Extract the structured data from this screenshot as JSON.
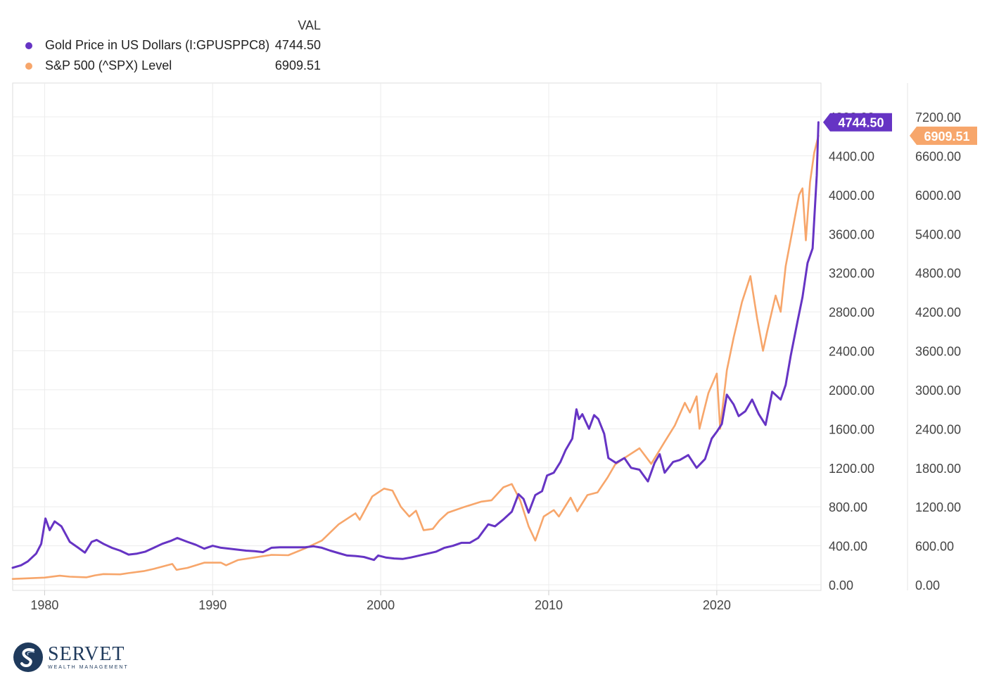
{
  "legend": {
    "header": "VAL",
    "items": [
      {
        "name": "Gold Price in US Dollars (I:GPUSPPC8)",
        "value": "4744.50",
        "color": "#6634c4"
      },
      {
        "name": "S&P 500 (^SPX) Level",
        "value": "6909.51",
        "color": "#f7a66b"
      }
    ]
  },
  "logo": {
    "name": "SERVET",
    "subtitle": "WEALTH MANAGEMENT",
    "color": "#1f3a5c"
  },
  "chart_data": {
    "type": "line",
    "x_ticks": [
      "1980",
      "1990",
      "2000",
      "2010",
      "2020"
    ],
    "x_range": [
      1978.1,
      2026.2
    ],
    "y_left": {
      "range": [
        0,
        4800
      ],
      "ticks": [
        "0.00",
        "400.00",
        "800.00",
        "1200.00",
        "1600.00",
        "2000.00",
        "2400.00",
        "2800.00",
        "3200.00",
        "3600.00",
        "4000.00",
        "4400.00",
        "4800.00"
      ]
    },
    "y_right": {
      "range": [
        0,
        7200
      ],
      "ticks": [
        "0.00",
        "600.00",
        "1200.00",
        "1800.00",
        "2400.00",
        "3000.00",
        "3600.00",
        "4200.00",
        "4800.00",
        "5400.00",
        "6000.00",
        "6600.00",
        "7200.00"
      ]
    },
    "grid": true,
    "series": [
      {
        "name": "Gold Price in US Dollars (I:GPUSPPC8)",
        "axis": "left",
        "color": "#6634c4",
        "last_label": "4744.50",
        "points": [
          [
            1978.1,
            175
          ],
          [
            1978.6,
            200
          ],
          [
            1979.0,
            240
          ],
          [
            1979.5,
            320
          ],
          [
            1979.8,
            420
          ],
          [
            1980.05,
            680
          ],
          [
            1980.3,
            560
          ],
          [
            1980.6,
            650
          ],
          [
            1981.0,
            600
          ],
          [
            1981.5,
            440
          ],
          [
            1982.0,
            380
          ],
          [
            1982.4,
            330
          ],
          [
            1982.8,
            440
          ],
          [
            1983.1,
            460
          ],
          [
            1983.5,
            420
          ],
          [
            1984.0,
            380
          ],
          [
            1984.5,
            350
          ],
          [
            1985.0,
            310
          ],
          [
            1985.5,
            320
          ],
          [
            1986.0,
            340
          ],
          [
            1986.5,
            380
          ],
          [
            1987.0,
            420
          ],
          [
            1987.5,
            450
          ],
          [
            1987.9,
            480
          ],
          [
            1988.5,
            440
          ],
          [
            1989.0,
            410
          ],
          [
            1989.5,
            370
          ],
          [
            1990.0,
            400
          ],
          [
            1990.5,
            380
          ],
          [
            1991.0,
            370
          ],
          [
            1991.5,
            360
          ],
          [
            1992.0,
            350
          ],
          [
            1992.5,
            345
          ],
          [
            1993.0,
            335
          ],
          [
            1993.5,
            380
          ],
          [
            1994.0,
            385
          ],
          [
            1994.5,
            385
          ],
          [
            1995.0,
            385
          ],
          [
            1995.5,
            385
          ],
          [
            1996.0,
            395
          ],
          [
            1996.5,
            380
          ],
          [
            1997.0,
            350
          ],
          [
            1997.5,
            325
          ],
          [
            1998.0,
            300
          ],
          [
            1998.5,
            295
          ],
          [
            1999.0,
            285
          ],
          [
            1999.6,
            255
          ],
          [
            1999.85,
            300
          ],
          [
            2000.3,
            280
          ],
          [
            2000.8,
            270
          ],
          [
            2001.3,
            265
          ],
          [
            2001.8,
            280
          ],
          [
            2002.3,
            300
          ],
          [
            2002.8,
            320
          ],
          [
            2003.3,
            340
          ],
          [
            2003.8,
            380
          ],
          [
            2004.3,
            400
          ],
          [
            2004.8,
            430
          ],
          [
            2005.3,
            430
          ],
          [
            2005.8,
            480
          ],
          [
            2006.4,
            620
          ],
          [
            2006.8,
            600
          ],
          [
            2007.3,
            670
          ],
          [
            2007.8,
            750
          ],
          [
            2008.2,
            930
          ],
          [
            2008.5,
            880
          ],
          [
            2008.8,
            740
          ],
          [
            2009.2,
            920
          ],
          [
            2009.6,
            960
          ],
          [
            2009.9,
            1120
          ],
          [
            2010.3,
            1150
          ],
          [
            2010.7,
            1260
          ],
          [
            2011.0,
            1380
          ],
          [
            2011.4,
            1500
          ],
          [
            2011.65,
            1800
          ],
          [
            2011.8,
            1700
          ],
          [
            2012.0,
            1750
          ],
          [
            2012.4,
            1600
          ],
          [
            2012.7,
            1740
          ],
          [
            2012.95,
            1700
          ],
          [
            2013.3,
            1550
          ],
          [
            2013.55,
            1300
          ],
          [
            2014.0,
            1250
          ],
          [
            2014.5,
            1300
          ],
          [
            2014.9,
            1200
          ],
          [
            2015.4,
            1180
          ],
          [
            2015.9,
            1060
          ],
          [
            2016.3,
            1250
          ],
          [
            2016.6,
            1340
          ],
          [
            2016.9,
            1150
          ],
          [
            2017.4,
            1260
          ],
          [
            2017.8,
            1280
          ],
          [
            2018.3,
            1330
          ],
          [
            2018.8,
            1200
          ],
          [
            2019.3,
            1290
          ],
          [
            2019.7,
            1500
          ],
          [
            2020.0,
            1570
          ],
          [
            2020.3,
            1650
          ],
          [
            2020.6,
            1950
          ],
          [
            2021.0,
            1850
          ],
          [
            2021.3,
            1730
          ],
          [
            2021.7,
            1780
          ],
          [
            2022.1,
            1900
          ],
          [
            2022.5,
            1750
          ],
          [
            2022.9,
            1640
          ],
          [
            2023.3,
            1980
          ],
          [
            2023.8,
            1900
          ],
          [
            2024.1,
            2050
          ],
          [
            2024.4,
            2350
          ],
          [
            2024.8,
            2700
          ],
          [
            2025.1,
            2950
          ],
          [
            2025.4,
            3300
          ],
          [
            2025.7,
            3450
          ],
          [
            2025.95,
            4200
          ],
          [
            2026.05,
            4744.5
          ]
        ]
      },
      {
        "name": "S&P 500 (^SPX) Level",
        "axis": "right",
        "color": "#f7a66b",
        "last_label": "6909.51",
        "points": [
          [
            1978.1,
            90
          ],
          [
            1979.0,
            100
          ],
          [
            1980.0,
            110
          ],
          [
            1980.9,
            140
          ],
          [
            1981.5,
            125
          ],
          [
            1982.5,
            115
          ],
          [
            1983.0,
            145
          ],
          [
            1983.5,
            165
          ],
          [
            1984.5,
            160
          ],
          [
            1985.0,
            180
          ],
          [
            1985.9,
            210
          ],
          [
            1986.5,
            245
          ],
          [
            1987.6,
            320
          ],
          [
            1987.85,
            230
          ],
          [
            1988.5,
            260
          ],
          [
            1989.5,
            340
          ],
          [
            1990.5,
            340
          ],
          [
            1990.8,
            300
          ],
          [
            1991.5,
            380
          ],
          [
            1992.5,
            420
          ],
          [
            1993.5,
            460
          ],
          [
            1994.5,
            455
          ],
          [
            1995.5,
            560
          ],
          [
            1996.5,
            680
          ],
          [
            1997.5,
            930
          ],
          [
            1998.5,
            1100
          ],
          [
            1998.75,
            1000
          ],
          [
            1999.5,
            1360
          ],
          [
            2000.2,
            1480
          ],
          [
            2000.7,
            1450
          ],
          [
            2001.2,
            1200
          ],
          [
            2001.7,
            1050
          ],
          [
            2002.1,
            1140
          ],
          [
            2002.55,
            840
          ],
          [
            2003.1,
            860
          ],
          [
            2003.5,
            990
          ],
          [
            2004.0,
            1110
          ],
          [
            2005.0,
            1200
          ],
          [
            2006.0,
            1280
          ],
          [
            2006.6,
            1300
          ],
          [
            2007.3,
            1500
          ],
          [
            2007.8,
            1550
          ],
          [
            2008.3,
            1300
          ],
          [
            2008.8,
            900
          ],
          [
            2009.2,
            680
          ],
          [
            2009.7,
            1050
          ],
          [
            2010.3,
            1150
          ],
          [
            2010.6,
            1050
          ],
          [
            2011.3,
            1340
          ],
          [
            2011.7,
            1130
          ],
          [
            2012.3,
            1380
          ],
          [
            2012.9,
            1420
          ],
          [
            2013.5,
            1650
          ],
          [
            2013.95,
            1850
          ],
          [
            2014.5,
            1950
          ],
          [
            2015.4,
            2100
          ],
          [
            2016.1,
            1860
          ],
          [
            2016.9,
            2200
          ],
          [
            2017.5,
            2450
          ],
          [
            2018.1,
            2800
          ],
          [
            2018.4,
            2650
          ],
          [
            2018.8,
            2900
          ],
          [
            2018.97,
            2400
          ],
          [
            2019.5,
            2950
          ],
          [
            2020.0,
            3250
          ],
          [
            2020.2,
            2400
          ],
          [
            2020.6,
            3300
          ],
          [
            2021.0,
            3800
          ],
          [
            2021.5,
            4350
          ],
          [
            2022.0,
            4750
          ],
          [
            2022.4,
            4100
          ],
          [
            2022.75,
            3600
          ],
          [
            2023.0,
            3900
          ],
          [
            2023.5,
            4450
          ],
          [
            2023.8,
            4200
          ],
          [
            2024.1,
            4900
          ],
          [
            2024.5,
            5450
          ],
          [
            2024.9,
            6000
          ],
          [
            2025.1,
            6100
          ],
          [
            2025.3,
            5300
          ],
          [
            2025.55,
            6200
          ],
          [
            2025.8,
            6650
          ],
          [
            2026.05,
            6909.51
          ]
        ]
      }
    ]
  }
}
